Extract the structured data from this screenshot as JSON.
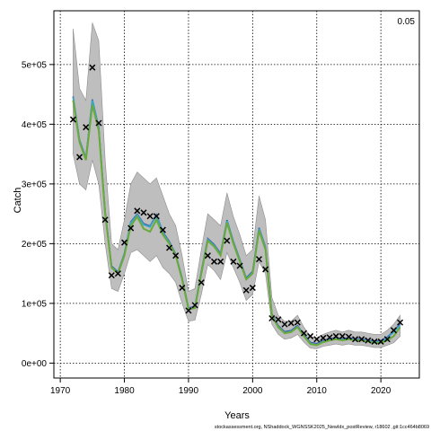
{
  "chart_data": {
    "type": "line",
    "xlabel": "Years",
    "ylabel": "Catch",
    "corner_label": "0.05",
    "footer": "stockassessment.org, NShaddock_WGNSSK2025_NewIdx_postReview, r18602 ,git:1cc464b8069",
    "xlim": [
      1969,
      2026
    ],
    "ylim": [
      -25000,
      590000
    ],
    "x_ticks": [
      1970,
      1980,
      1990,
      2000,
      2010,
      2020
    ],
    "x_tick_labels": [
      "1970",
      "1980",
      "1990",
      "2000",
      "2010",
      "2020"
    ],
    "y_ticks": [
      0,
      100000,
      200000,
      300000,
      400000,
      500000
    ],
    "y_tick_labels": [
      "0e+00",
      "1e+05",
      "2e+05",
      "3e+05",
      "4e+05",
      "5e+05"
    ],
    "grid": true,
    "colors": {
      "band": "#bebebe",
      "fit_main": "#6aaa3a",
      "fit_alt1": "#3aa6c4",
      "fit_alt2": "#3a4fa8",
      "observed": "#000000"
    },
    "years": [
      1972,
      1973,
      1974,
      1975,
      1976,
      1977,
      1978,
      1979,
      1980,
      1981,
      1982,
      1983,
      1984,
      1985,
      1986,
      1987,
      1988,
      1989,
      1990,
      1991,
      1992,
      1993,
      1994,
      1995,
      1996,
      1997,
      1998,
      1999,
      2000,
      2001,
      2002,
      2003,
      2004,
      2005,
      2006,
      2007,
      2008,
      2009,
      2010,
      2011,
      2012,
      2013,
      2014,
      2015,
      2016,
      2017,
      2018,
      2019,
      2020,
      2021,
      2022,
      2023
    ],
    "observed": [
      408000,
      345000,
      395000,
      495000,
      402000,
      240000,
      147000,
      150000,
      202000,
      226000,
      255000,
      252000,
      246000,
      246000,
      223000,
      193000,
      180000,
      126000,
      88000,
      97000,
      135000,
      180000,
      170000,
      170000,
      205000,
      170000,
      163000,
      122000,
      126000,
      174000,
      157000,
      75000,
      73000,
      65000,
      67000,
      68000,
      50000,
      45000,
      40000,
      42000,
      43000,
      45000,
      45000,
      44000,
      40000,
      40000,
      38000,
      36000,
      36000,
      40000,
      55000,
      68000
    ],
    "fit": [
      440000,
      370000,
      340000,
      432000,
      390000,
      250000,
      160000,
      150000,
      180000,
      230000,
      245000,
      225000,
      220000,
      240000,
      215000,
      200000,
      180000,
      140000,
      90000,
      92000,
      150000,
      205000,
      195000,
      180000,
      235000,
      200000,
      170000,
      140000,
      150000,
      222000,
      190000,
      80000,
      60000,
      50000,
      52000,
      60000,
      45000,
      32000,
      30000,
      35000,
      38000,
      40000,
      38000,
      40000,
      38000,
      38000,
      36000,
      34000,
      34000,
      38000,
      45000,
      60000
    ],
    "fit_alt": [
      445000,
      372000,
      342000,
      440000,
      393000,
      252000,
      161000,
      151000,
      182000,
      235000,
      248000,
      232000,
      228000,
      247000,
      218000,
      202000,
      181000,
      141000,
      91000,
      93000,
      152000,
      207000,
      197000,
      182000,
      238000,
      202000,
      172000,
      141000,
      152000,
      225000,
      193000,
      81000,
      61000,
      51000,
      53000,
      61000,
      46000,
      33000,
      31000,
      36000,
      39000,
      41000,
      39000,
      41000,
      39000,
      39000,
      37000,
      35000,
      36000,
      42000,
      52000,
      64000
    ],
    "upper": [
      560000,
      460000,
      440000,
      570000,
      540000,
      340000,
      200000,
      190000,
      240000,
      300000,
      320000,
      310000,
      300000,
      310000,
      280000,
      250000,
      230000,
      180000,
      120000,
      125000,
      190000,
      250000,
      240000,
      230000,
      285000,
      245000,
      215000,
      180000,
      190000,
      280000,
      240000,
      110000,
      80000,
      70000,
      70000,
      80000,
      60000,
      45000,
      42000,
      48000,
      52000,
      55000,
      52000,
      55000,
      52000,
      52000,
      50000,
      48000,
      48000,
      55000,
      65000,
      80000
    ],
    "lower": [
      350000,
      300000,
      290000,
      340000,
      300000,
      200000,
      125000,
      120000,
      150000,
      185000,
      190000,
      180000,
      170000,
      180000,
      160000,
      150000,
      135000,
      100000,
      70000,
      72000,
      115000,
      165000,
      155000,
      140000,
      185000,
      160000,
      135000,
      105000,
      115000,
      170000,
      150000,
      65000,
      48000,
      40000,
      42000,
      48000,
      35000,
      25000,
      24000,
      28000,
      30000,
      32000,
      30000,
      32000,
      30000,
      30000,
      28000,
      26000,
      26000,
      30000,
      34000,
      45000
    ]
  }
}
